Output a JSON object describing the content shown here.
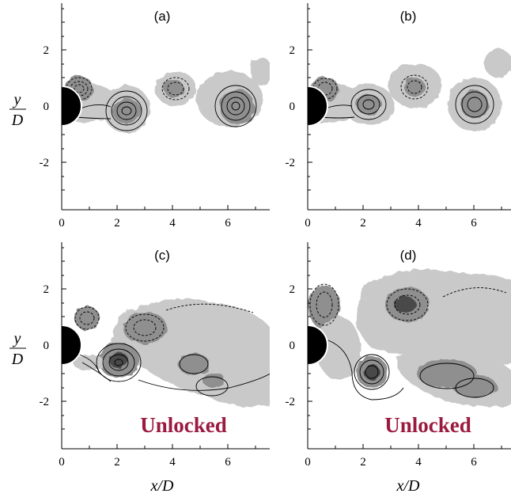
{
  "figure": {
    "panels": [
      {
        "label": "(a)",
        "annotation": ""
      },
      {
        "label": "(b)",
        "annotation": ""
      },
      {
        "label": "(c)",
        "annotation": "Unlocked"
      },
      {
        "label": "(d)",
        "annotation": "Unlocked"
      }
    ],
    "x_axis_label": "x/D",
    "y_axis_label_num": "y",
    "y_axis_label_den": "D",
    "x_ticks": [
      "0",
      "2",
      "4",
      "6"
    ],
    "y_ticks": [
      "2",
      "0",
      "-2"
    ],
    "colors": {
      "annotation": "#9b1b3f",
      "light_region": "#c9c9c9",
      "mid_region": "#8f8f8f",
      "dark_region": "#4a4a4a",
      "cylinder": "#000000"
    }
  },
  "chart_data": {
    "type": "contour",
    "x_range": [
      0,
      7.5
    ],
    "y_range": [
      -3.5,
      3.5
    ],
    "panels": [
      {
        "id": "a",
        "vortices": [
          {
            "x": 0.8,
            "y": 0.6,
            "sign": "negative"
          },
          {
            "x": 2.3,
            "y": -0.2,
            "sign": "positive"
          },
          {
            "x": 4.0,
            "y": 0.6,
            "sign": "negative"
          },
          {
            "x": 6.1,
            "y": 0.0,
            "sign": "positive"
          }
        ]
      },
      {
        "id": "b",
        "vortices": [
          {
            "x": 0.8,
            "y": 0.6,
            "sign": "negative"
          },
          {
            "x": 2.2,
            "y": -0.1,
            "sign": "positive"
          },
          {
            "x": 3.9,
            "y": 0.6,
            "sign": "negative"
          },
          {
            "x": 5.9,
            "y": 0.0,
            "sign": "positive"
          }
        ]
      },
      {
        "id": "c",
        "vortices": [
          {
            "x": 0.9,
            "y": 0.9,
            "sign": "negative"
          },
          {
            "x": 2.1,
            "y": -0.6,
            "sign": "positive"
          },
          {
            "x": 3.0,
            "y": 0.6,
            "sign": "negative"
          },
          {
            "x": 5.0,
            "y": -0.8,
            "sign": "positive"
          }
        ]
      },
      {
        "id": "d",
        "vortices": [
          {
            "x": 0.9,
            "y": 1.3,
            "sign": "negative"
          },
          {
            "x": 2.3,
            "y": -1.0,
            "sign": "positive"
          },
          {
            "x": 3.5,
            "y": 1.2,
            "sign": "negative"
          },
          {
            "x": 5.3,
            "y": -1.0,
            "sign": "positive"
          }
        ]
      }
    ]
  }
}
